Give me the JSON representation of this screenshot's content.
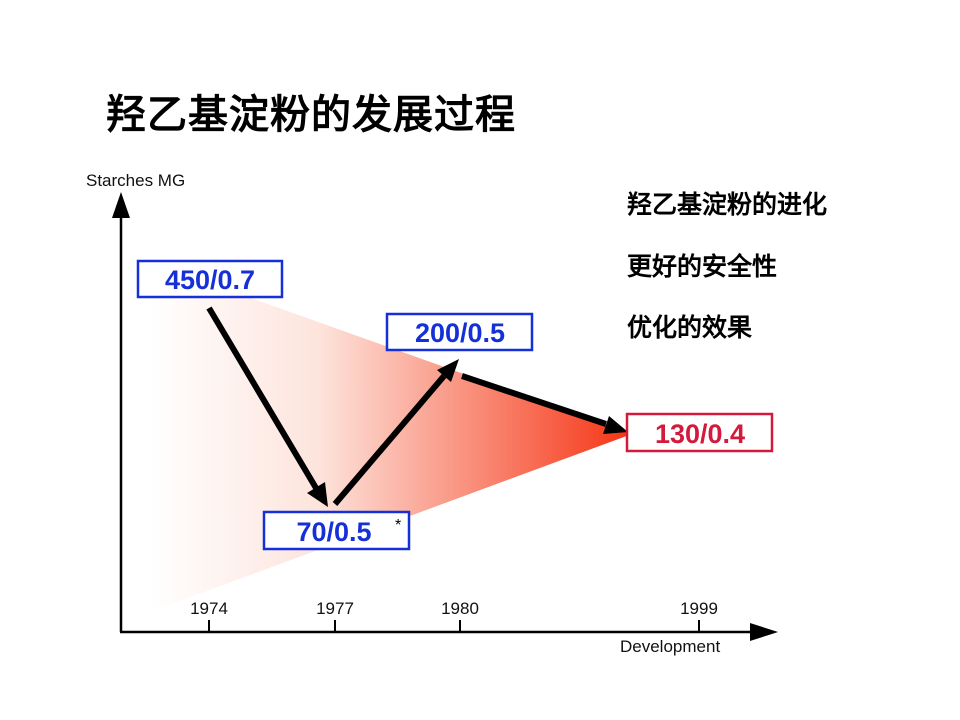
{
  "title": "羟乙基淀粉的发展过程",
  "notes": [
    "羟乙基淀粉的进化",
    "更好的安全性",
    "优化的效果"
  ],
  "axes": {
    "y_label": "Starches MG",
    "x_label": "Development"
  },
  "years": [
    "1974",
    "1977",
    "1980",
    "1999"
  ],
  "milestones": [
    {
      "label": "450/0.7",
      "color": "#1530d8"
    },
    {
      "label": "70/0.5",
      "color": "#1530d8",
      "footnote": "*"
    },
    {
      "label": "200/0.5",
      "color": "#1530d8"
    },
    {
      "label": "130/0.4",
      "color": "#d41a3c"
    }
  ],
  "colors": {
    "gradient_end": "#f53414",
    "arrow": "#000000"
  }
}
